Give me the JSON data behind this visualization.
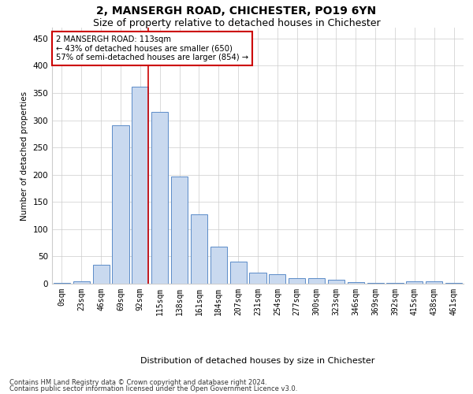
{
  "title": "2, MANSERGH ROAD, CHICHESTER, PO19 6YN",
  "subtitle": "Size of property relative to detached houses in Chichester",
  "xlabel": "Distribution of detached houses by size in Chichester",
  "ylabel": "Number of detached properties",
  "bar_labels": [
    "0sqm",
    "23sqm",
    "46sqm",
    "69sqm",
    "92sqm",
    "115sqm",
    "138sqm",
    "161sqm",
    "184sqm",
    "207sqm",
    "231sqm",
    "254sqm",
    "277sqm",
    "300sqm",
    "323sqm",
    "346sqm",
    "369sqm",
    "392sqm",
    "415sqm",
    "438sqm",
    "461sqm"
  ],
  "bar_values": [
    2,
    5,
    35,
    290,
    362,
    315,
    197,
    127,
    68,
    40,
    20,
    18,
    10,
    10,
    7,
    3,
    1,
    1,
    5,
    4,
    1
  ],
  "bar_color": "#c9d9ef",
  "bar_edge_color": "#5b8cc8",
  "annotation_text_line1": "2 MANSERGH ROAD: 113sqm",
  "annotation_text_line2": "← 43% of detached houses are smaller (650)",
  "annotation_text_line3": "57% of semi-detached houses are larger (854) →",
  "annotation_box_color": "#ffffff",
  "annotation_box_edge": "#cc0000",
  "vline_color": "#cc0000",
  "ylim": [
    0,
    470
  ],
  "yticks": [
    0,
    50,
    100,
    150,
    200,
    250,
    300,
    350,
    400,
    450
  ],
  "footer_line1": "Contains HM Land Registry data © Crown copyright and database right 2024.",
  "footer_line2": "Contains public sector information licensed under the Open Government Licence v3.0.",
  "bg_color": "#ffffff",
  "grid_color": "#cccccc",
  "title_fontsize": 10,
  "subtitle_fontsize": 9
}
